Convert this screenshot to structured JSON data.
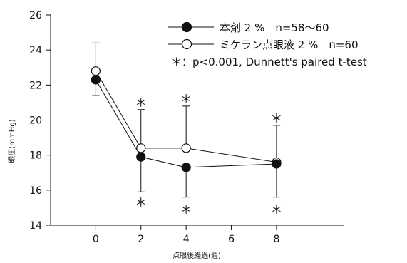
{
  "chart_data": {
    "type": "line",
    "xlabel": "点眼後経過(週)",
    "ylabel": "眼圧(mmHg)",
    "x": [
      0,
      2,
      4,
      8
    ],
    "x_ticks": [
      "0",
      "2",
      "4",
      "6",
      "8"
    ],
    "y_ticks": [
      "14",
      "16",
      "18",
      "20",
      "22",
      "24",
      "26"
    ],
    "xlim": [
      -2,
      11
    ],
    "ylim": [
      14,
      26
    ],
    "grid": false,
    "legend_position": "top-right",
    "series": [
      {
        "name": "本剤 2 %　n=58〜60",
        "marker": "filled-circle",
        "values": [
          22.3,
          17.9,
          17.3,
          17.5
        ],
        "error_low": [
          21.4,
          15.9,
          15.6,
          15.6
        ],
        "error_high": [
          22.3,
          17.9,
          17.3,
          17.5
        ]
      },
      {
        "name": "ミケラン点眼液 2 %　n=60",
        "marker": "open-circle",
        "values": [
          22.8,
          18.4,
          18.4,
          17.6
        ],
        "error_low": [
          22.8,
          18.4,
          18.4,
          17.6
        ],
        "error_high": [
          24.4,
          20.6,
          20.8,
          19.7
        ]
      }
    ],
    "significance_marks": [
      {
        "x": 2,
        "y": 21.0,
        "text": "＊"
      },
      {
        "x": 4,
        "y": 21.2,
        "text": "＊"
      },
      {
        "x": 8,
        "y": 20.1,
        "text": "＊"
      },
      {
        "x": 2,
        "y": 15.3,
        "text": "＊"
      },
      {
        "x": 4,
        "y": 14.9,
        "text": "＊"
      },
      {
        "x": 8,
        "y": 14.9,
        "text": "＊"
      }
    ],
    "annotation": "＊：p<0.001,  Dunnett's paired  t-test",
    "colors": {
      "line": "#111111",
      "marker_fill": "#111111",
      "open_fill": "#ffffff"
    }
  }
}
